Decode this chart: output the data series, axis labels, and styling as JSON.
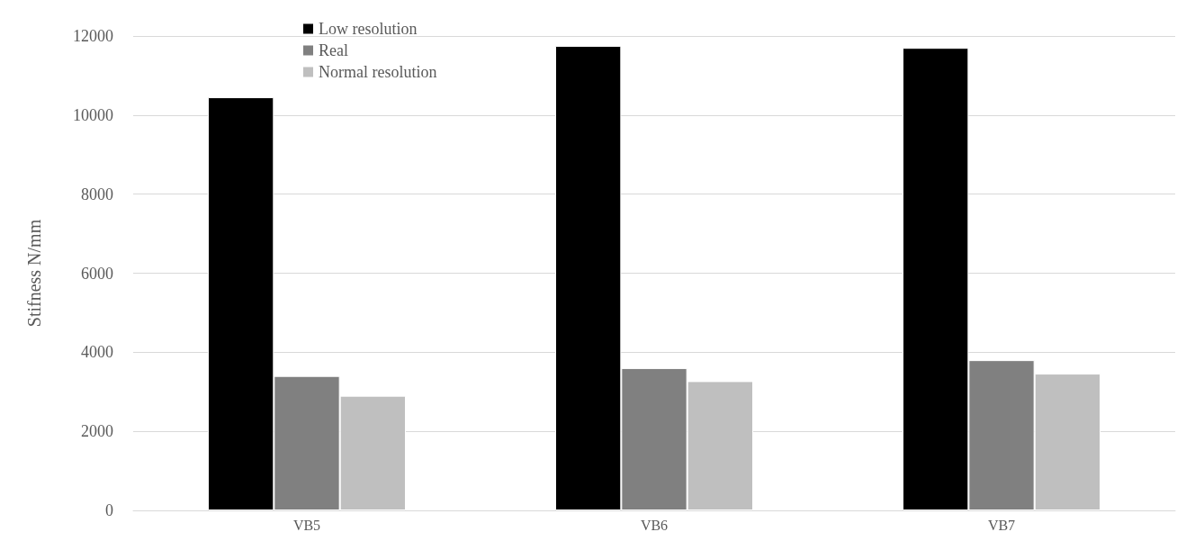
{
  "chart_data": {
    "type": "bar",
    "ylabel": "Stifness N/mm",
    "categories": [
      "VB5",
      "VB6",
      "VB7"
    ],
    "series": [
      {
        "name": "Low resolution",
        "color": "#000000",
        "values": [
          10450,
          11750,
          11700
        ]
      },
      {
        "name": "Real",
        "color": "#808080",
        "values": [
          3400,
          3600,
          3800
        ]
      },
      {
        "name": "Normal resolution",
        "color": "#bfbfbf",
        "values": [
          2900,
          3270,
          3460
        ]
      }
    ],
    "ylim": [
      0,
      12000
    ],
    "yticks": [
      0,
      2000,
      4000,
      6000,
      8000,
      10000,
      12000
    ],
    "grid": "y",
    "legend": "top"
  }
}
